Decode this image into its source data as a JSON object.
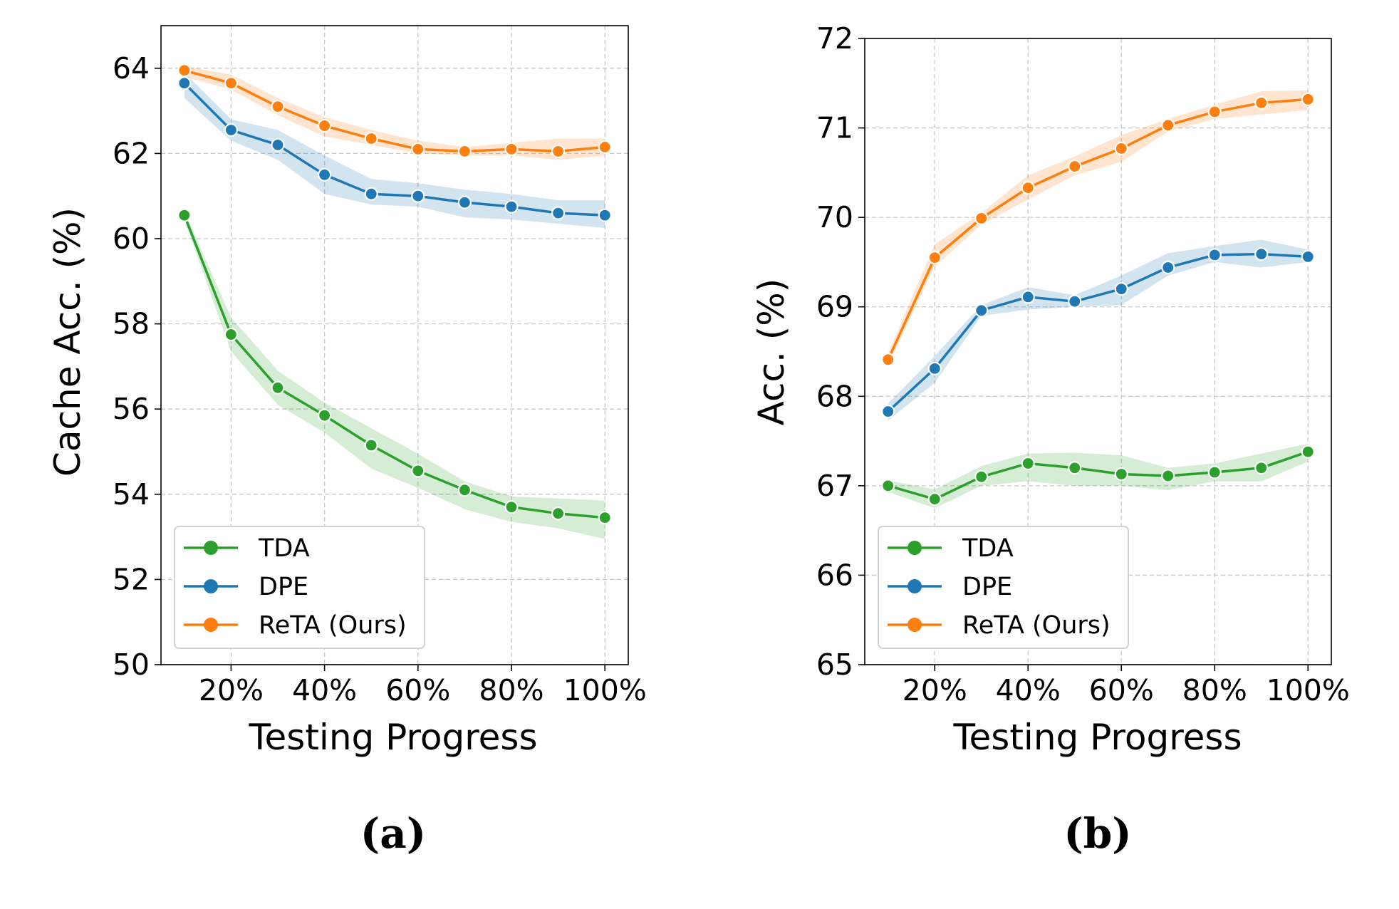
{
  "colors": {
    "TDA": "#2ca02c",
    "DPE": "#1f77b4",
    "ReTA (Ours)": "#ff7f0e"
  },
  "chart_data": [
    {
      "type": "line",
      "caption": "(a)",
      "xlabel": "Testing Progress",
      "ylabel": "Cache Acc. (%)",
      "x": [
        10,
        20,
        30,
        40,
        50,
        60,
        70,
        80,
        90,
        100
      ],
      "xticks": [
        20,
        40,
        60,
        80,
        100
      ],
      "xtick_labels": [
        "20%",
        "40%",
        "60%",
        "80%",
        "100%"
      ],
      "xlim": [
        5,
        105
      ],
      "ylim": [
        50,
        65
      ],
      "yticks": [
        50,
        52,
        54,
        56,
        58,
        60,
        62,
        64
      ],
      "ytick_labels": [
        "50",
        "52",
        "54",
        "56",
        "58",
        "60",
        "62",
        "64"
      ],
      "grid": true,
      "legend_position": "lower-left",
      "series": [
        {
          "name": "TDA",
          "values": [
            60.55,
            57.75,
            56.5,
            55.85,
            55.15,
            54.55,
            54.1,
            53.7,
            53.55,
            53.45
          ],
          "lower": [
            60.45,
            57.35,
            56.1,
            55.45,
            54.6,
            54.15,
            53.65,
            53.35,
            53.2,
            52.95
          ],
          "upper": [
            60.65,
            58.15,
            56.9,
            56.15,
            55.55,
            54.95,
            54.3,
            53.95,
            53.9,
            53.85
          ]
        },
        {
          "name": "DPE",
          "values": [
            63.65,
            62.55,
            62.2,
            61.5,
            61.05,
            61.0,
            60.85,
            60.75,
            60.6,
            60.55
          ],
          "lower": [
            63.3,
            62.3,
            61.85,
            61.05,
            60.8,
            60.75,
            60.5,
            60.45,
            60.35,
            60.25
          ],
          "upper": [
            63.9,
            62.8,
            62.55,
            61.95,
            61.4,
            61.3,
            61.15,
            61.05,
            60.9,
            60.9
          ]
        },
        {
          "name": "ReTA (Ours)",
          "values": [
            63.95,
            63.65,
            63.1,
            62.65,
            62.35,
            62.1,
            62.05,
            62.1,
            62.05,
            62.15
          ],
          "lower": [
            63.8,
            63.5,
            62.9,
            62.4,
            62.2,
            62.0,
            61.95,
            61.95,
            61.85,
            61.95
          ],
          "upper": [
            64.05,
            63.85,
            63.3,
            62.85,
            62.55,
            62.3,
            62.15,
            62.25,
            62.35,
            62.35
          ]
        }
      ]
    },
    {
      "type": "line",
      "caption": "(b)",
      "xlabel": "Testing Progress",
      "ylabel": "Acc. (%)",
      "x": [
        10,
        20,
        30,
        40,
        50,
        60,
        70,
        80,
        90,
        100
      ],
      "xticks": [
        20,
        40,
        60,
        80,
        100
      ],
      "xtick_labels": [
        "20%",
        "40%",
        "60%",
        "80%",
        "100%"
      ],
      "xlim": [
        5,
        105
      ],
      "ylim": [
        65,
        72
      ],
      "yticks": [
        65,
        66,
        67,
        68,
        69,
        70,
        71,
        72
      ],
      "ytick_labels": [
        "65",
        "66",
        "67",
        "68",
        "69",
        "70",
        "71",
        "72"
      ],
      "grid": true,
      "legend_position": "lower-left",
      "series": [
        {
          "name": "TDA",
          "values": [
            67.0,
            66.85,
            67.1,
            67.25,
            67.2,
            67.13,
            67.11,
            67.15,
            67.2,
            67.38
          ],
          "lower": [
            66.93,
            66.75,
            67.0,
            67.05,
            67.0,
            67.0,
            66.95,
            67.05,
            67.05,
            67.27
          ],
          "upper": [
            67.06,
            66.96,
            67.22,
            67.36,
            67.37,
            67.34,
            67.2,
            67.25,
            67.36,
            67.47
          ]
        },
        {
          "name": "DPE",
          "values": [
            67.83,
            68.31,
            68.96,
            69.11,
            69.06,
            69.2,
            69.44,
            69.58,
            69.59,
            69.56
          ],
          "lower": [
            67.73,
            68.15,
            68.9,
            68.97,
            69.0,
            69.02,
            69.35,
            69.5,
            69.44,
            69.5
          ],
          "upper": [
            67.92,
            68.45,
            69.02,
            69.22,
            69.13,
            69.35,
            69.6,
            69.68,
            69.75,
            69.64
          ]
        },
        {
          "name": "ReTA (Ours)",
          "values": [
            68.41,
            69.55,
            69.99,
            70.33,
            70.57,
            70.77,
            71.03,
            71.18,
            71.28,
            71.32
          ],
          "lower": [
            68.35,
            69.45,
            69.92,
            70.2,
            70.47,
            70.62,
            70.96,
            71.1,
            71.15,
            71.2
          ],
          "upper": [
            68.48,
            69.7,
            70.05,
            70.47,
            70.68,
            70.92,
            71.1,
            71.26,
            71.41,
            71.42
          ]
        }
      ]
    }
  ]
}
